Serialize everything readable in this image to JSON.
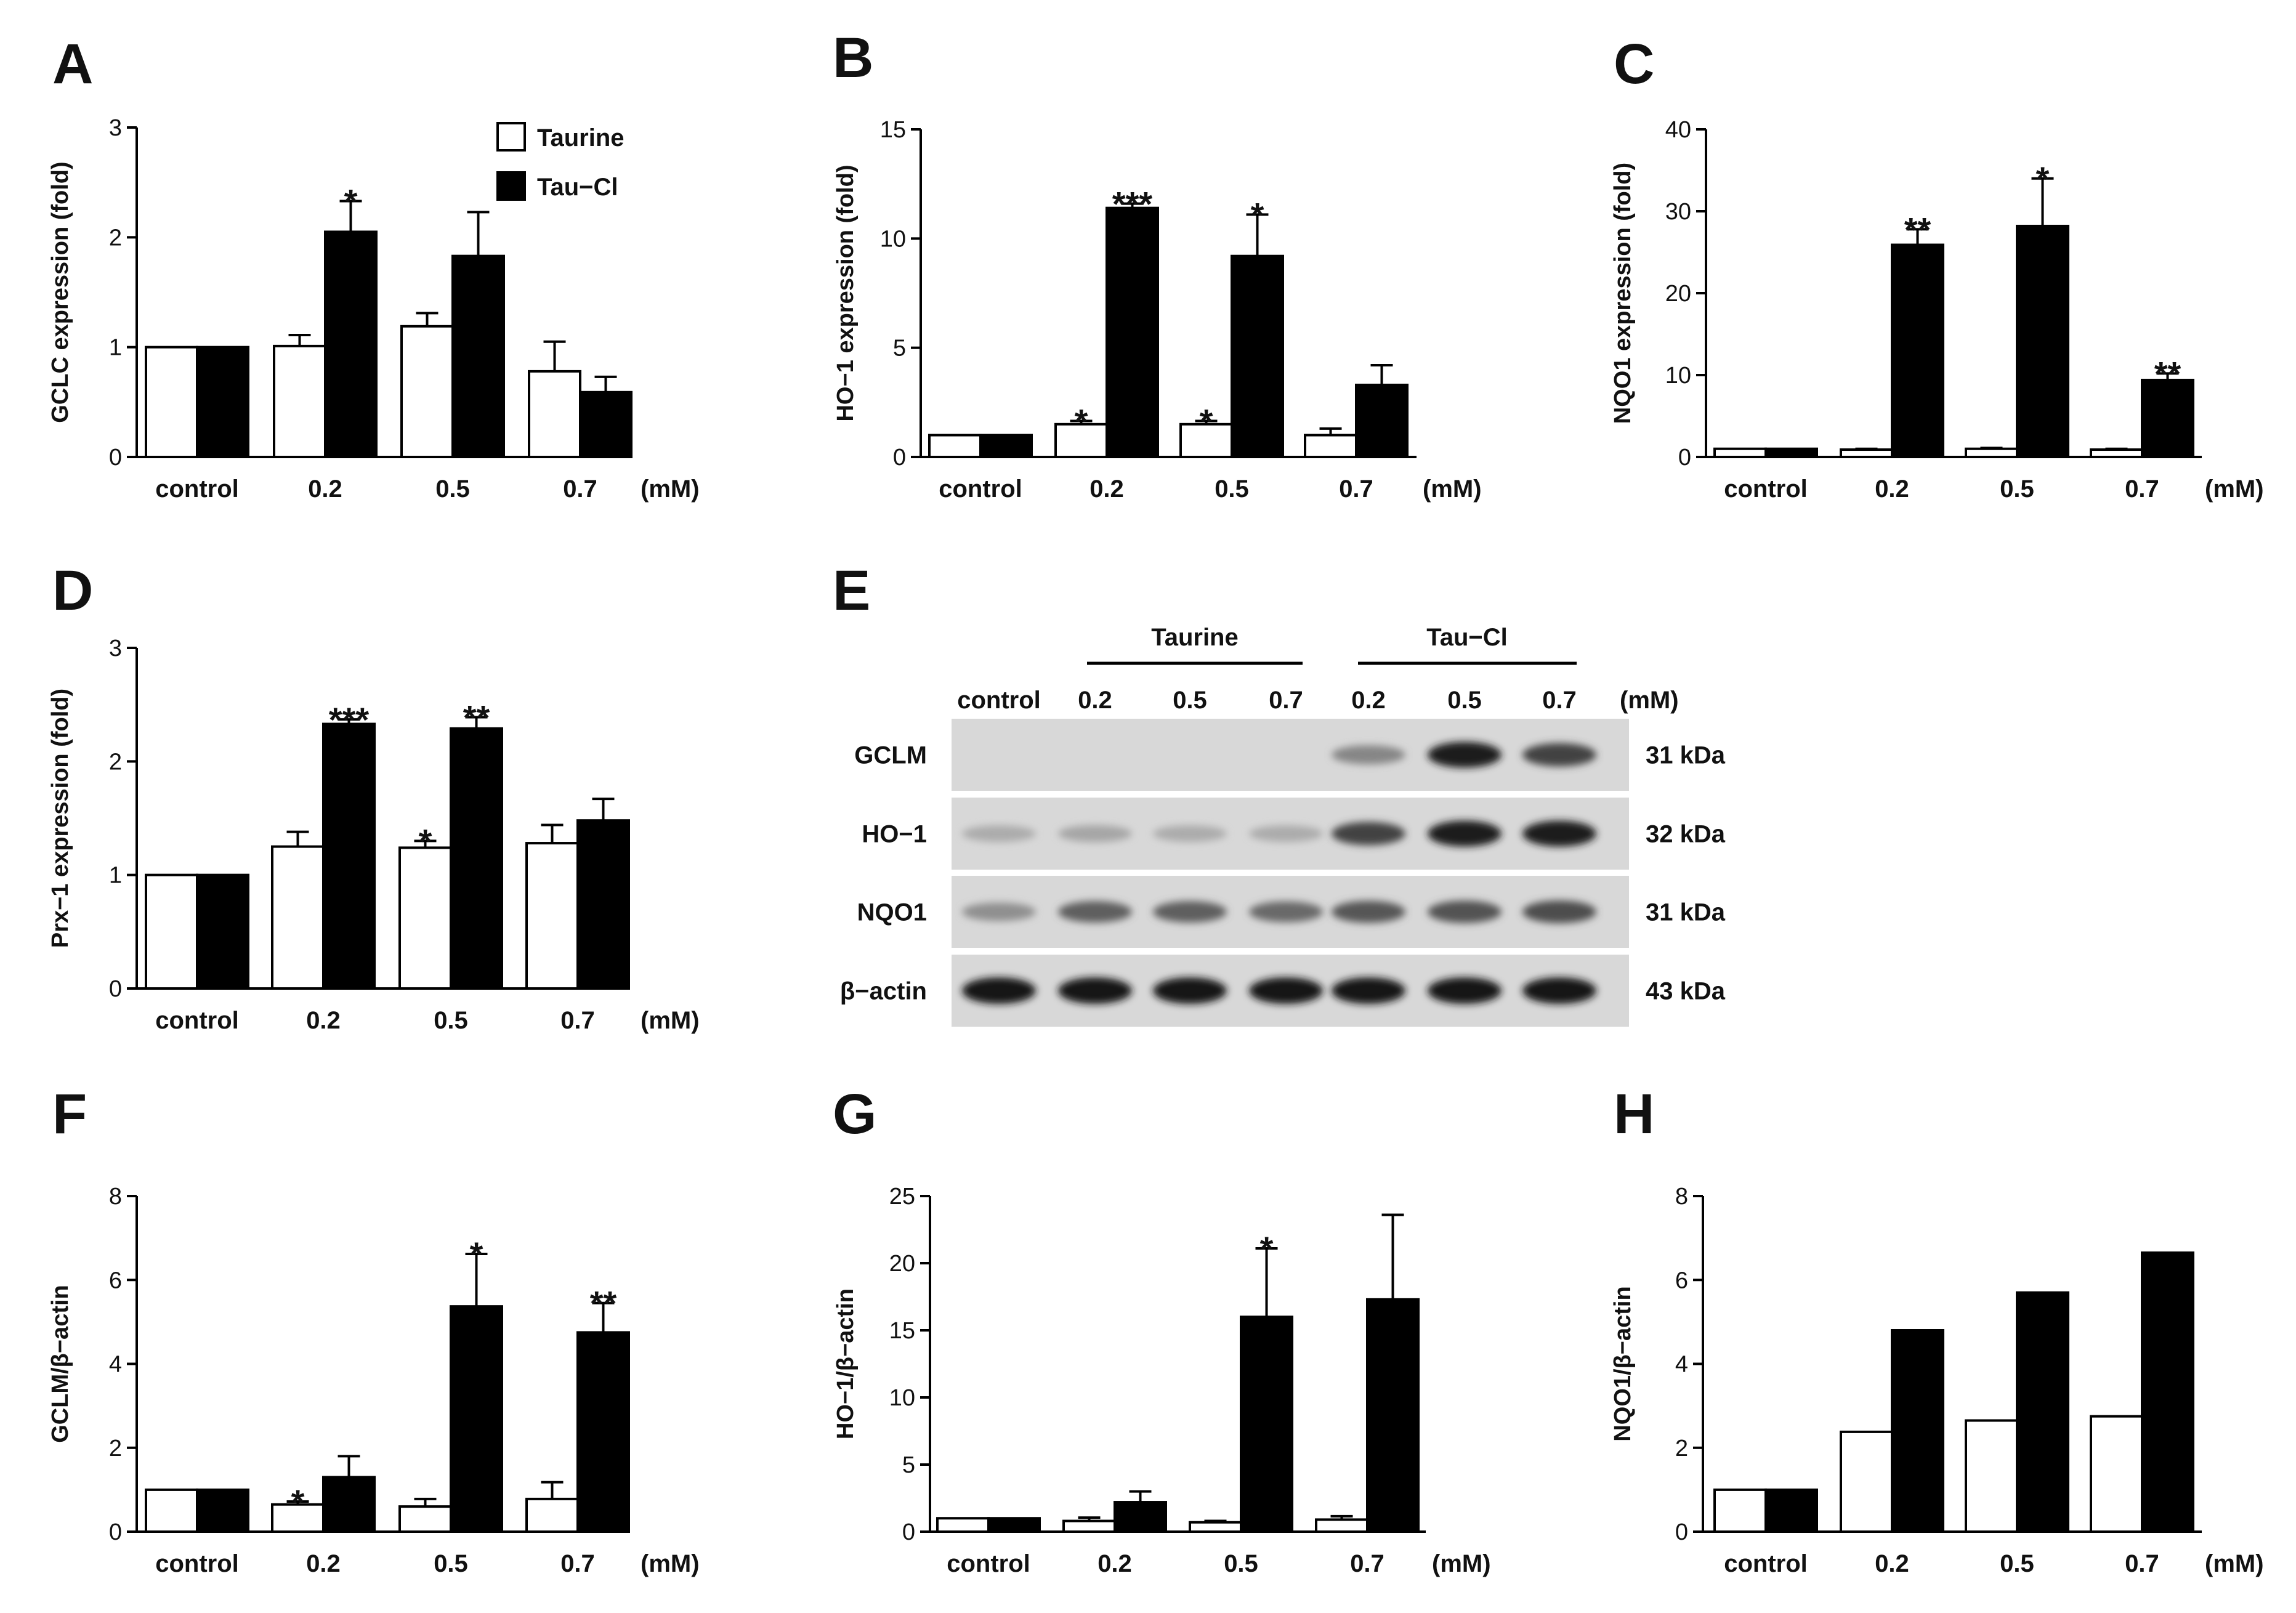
{
  "figure": {
    "units_label": "(mM)",
    "categories": [
      "control",
      "0.2",
      "0.5",
      "0.7"
    ],
    "legend": [
      {
        "name": "Taurine",
        "color": "#ffffff"
      },
      {
        "name": "Tau−Cl",
        "color": "#000000"
      }
    ]
  },
  "chart_data": [
    {
      "id": "A",
      "label": "A",
      "type": "bar",
      "ylabel": "GCLC expression (fold)",
      "ylim": [
        0,
        3
      ],
      "yticks": [
        0,
        1,
        2,
        3
      ],
      "series": [
        {
          "name": "Taurine",
          "values": [
            1.0,
            1.01,
            1.19,
            0.78
          ],
          "errors": [
            0,
            0.1,
            0.12,
            0.27
          ]
        },
        {
          "name": "Tau−Cl",
          "values": [
            1.0,
            2.05,
            1.83,
            0.59
          ],
          "errors": [
            0,
            0.28,
            0.4,
            0.14
          ]
        }
      ],
      "annotations": [
        {
          "series": 1,
          "index": 1,
          "text": "*"
        }
      ]
    },
    {
      "id": "B",
      "label": "B",
      "type": "bar",
      "ylabel": "HO−1 expression (fold)",
      "ylim": [
        0,
        15
      ],
      "yticks": [
        0,
        5,
        10,
        15
      ],
      "series": [
        {
          "name": "Taurine",
          "values": [
            1.0,
            1.5,
            1.5,
            1.0
          ],
          "errors": [
            0,
            0.15,
            0.15,
            0.3
          ]
        },
        {
          "name": "Tau−Cl",
          "values": [
            1.0,
            11.4,
            9.2,
            3.3
          ],
          "errors": [
            0,
            0.2,
            1.9,
            0.9
          ]
        }
      ],
      "annotations": [
        {
          "series": 0,
          "index": 1,
          "text": "*"
        },
        {
          "series": 1,
          "index": 1,
          "text": "***"
        },
        {
          "series": 0,
          "index": 2,
          "text": "*"
        },
        {
          "series": 1,
          "index": 2,
          "text": "*"
        }
      ]
    },
    {
      "id": "C",
      "label": "C",
      "type": "bar",
      "ylabel": "NQO1 expression (fold)",
      "ylim": [
        0,
        40
      ],
      "yticks": [
        0,
        10,
        20,
        30,
        40
      ],
      "series": [
        {
          "name": "Taurine",
          "values": [
            1.0,
            0.9,
            1.0,
            0.9
          ],
          "errors": [
            0,
            0.1,
            0.1,
            0.1
          ]
        },
        {
          "name": "Tau−Cl",
          "values": [
            1.0,
            25.9,
            28.2,
            9.4
          ],
          "errors": [
            0,
            1.9,
            5.8,
            0.8
          ]
        }
      ],
      "annotations": [
        {
          "series": 1,
          "index": 1,
          "text": "**"
        },
        {
          "series": 1,
          "index": 2,
          "text": "*"
        },
        {
          "series": 1,
          "index": 3,
          "text": "**"
        }
      ]
    },
    {
      "id": "D",
      "label": "D",
      "type": "bar",
      "ylabel": "Prx−1 expression (fold)",
      "ylim": [
        0,
        3
      ],
      "yticks": [
        0,
        1,
        2,
        3
      ],
      "series": [
        {
          "name": "Taurine",
          "values": [
            1.0,
            1.25,
            1.24,
            1.28
          ],
          "errors": [
            0,
            0.13,
            0.06,
            0.16
          ]
        },
        {
          "name": "Tau−Cl",
          "values": [
            1.0,
            2.33,
            2.29,
            1.48
          ],
          "errors": [
            0,
            0.04,
            0.1,
            0.19
          ]
        }
      ],
      "annotations": [
        {
          "series": 1,
          "index": 1,
          "text": "***"
        },
        {
          "series": 0,
          "index": 2,
          "text": "*"
        },
        {
          "series": 1,
          "index": 2,
          "text": "**"
        }
      ]
    },
    {
      "id": "F",
      "label": "F",
      "type": "bar",
      "ylabel": "GCLM/β−actin",
      "ylim": [
        0,
        8
      ],
      "yticks": [
        0,
        2,
        4,
        6,
        8
      ],
      "series": [
        {
          "name": "Taurine",
          "values": [
            1.0,
            0.65,
            0.6,
            0.78
          ],
          "errors": [
            0,
            0.07,
            0.18,
            0.4
          ]
        },
        {
          "name": "Tau−Cl",
          "values": [
            1.0,
            1.3,
            5.37,
            4.75
          ],
          "errors": [
            0,
            0.5,
            1.25,
            0.7
          ]
        }
      ],
      "annotations": [
        {
          "series": 0,
          "index": 1,
          "text": "*"
        },
        {
          "series": 1,
          "index": 2,
          "text": "*"
        },
        {
          "series": 1,
          "index": 3,
          "text": "**"
        }
      ]
    },
    {
      "id": "G",
      "label": "G",
      "type": "bar",
      "ylabel": "HO−1/β−actin",
      "ylim": [
        0,
        25
      ],
      "yticks": [
        0,
        5,
        10,
        15,
        20,
        25
      ],
      "series": [
        {
          "name": "Taurine",
          "values": [
            1.0,
            0.8,
            0.7,
            0.9
          ],
          "errors": [
            0,
            0.25,
            0.1,
            0.25
          ]
        },
        {
          "name": "Tau−Cl",
          "values": [
            1.0,
            2.2,
            16.0,
            17.3
          ],
          "errors": [
            0,
            0.8,
            5.1,
            6.3
          ]
        }
      ],
      "annotations": [
        {
          "series": 1,
          "index": 2,
          "text": "*"
        }
      ]
    },
    {
      "id": "H",
      "label": "H",
      "type": "bar",
      "ylabel": "NQO1/β−actin",
      "ylim": [
        0,
        8
      ],
      "yticks": [
        0,
        2,
        4,
        6,
        8
      ],
      "series": [
        {
          "name": "Taurine",
          "values": [
            1.0,
            2.38,
            2.65,
            2.75
          ],
          "errors": [
            0,
            0,
            0,
            0
          ]
        },
        {
          "name": "Tau−Cl",
          "values": [
            1.0,
            4.8,
            5.7,
            6.65
          ],
          "errors": [
            0,
            0,
            0,
            0
          ]
        }
      ],
      "annotations": []
    }
  ],
  "western_blot": {
    "label": "E",
    "groups": [
      {
        "name": "Taurine"
      },
      {
        "name": "Tau−Cl"
      }
    ],
    "lanes": [
      "control",
      "0.2",
      "0.5",
      "0.7",
      "0.2",
      "0.5",
      "0.7"
    ],
    "units_label": "(mM)",
    "rows": [
      {
        "name": "GCLM",
        "kda": "31 kDa",
        "intensity": [
          0.02,
          0.02,
          0.02,
          0.02,
          0.35,
          0.9,
          0.7
        ]
      },
      {
        "name": "HO−1",
        "kda": "32 kDa",
        "intensity": [
          0.15,
          0.18,
          0.15,
          0.15,
          0.7,
          0.9,
          0.9
        ]
      },
      {
        "name": "NQO1",
        "kda": "31 kDa",
        "intensity": [
          0.3,
          0.55,
          0.55,
          0.5,
          0.6,
          0.62,
          0.65
        ]
      },
      {
        "name": "β−actin",
        "kda": "43 kDa",
        "intensity": [
          0.95,
          0.95,
          0.95,
          0.95,
          0.95,
          0.95,
          0.95
        ]
      }
    ]
  }
}
